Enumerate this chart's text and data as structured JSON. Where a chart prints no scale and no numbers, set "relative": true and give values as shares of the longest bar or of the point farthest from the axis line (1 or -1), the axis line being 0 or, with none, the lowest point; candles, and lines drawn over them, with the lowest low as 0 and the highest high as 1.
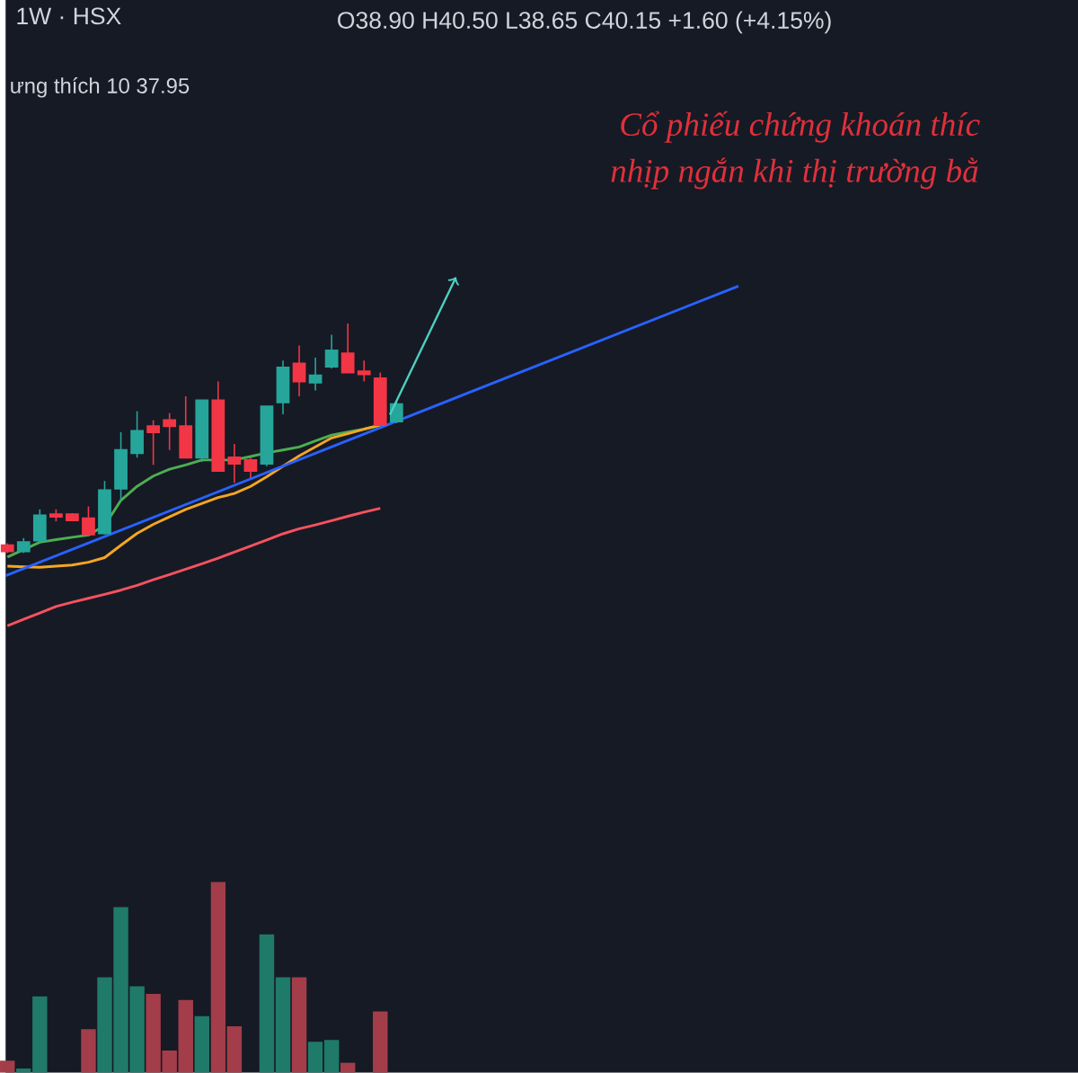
{
  "chart_data": [
    {
      "type": "candlestick",
      "title": "1W · HSX",
      "relative": true,
      "tick_labels": false,
      "annotations": [
        "O38.90 H40.50 L38.65 C40.15 +1.60 (+4.15%)",
        "ưng thích 10 37.95",
        "Cổ phiếu chứng khoán thíc",
        "nhịp ngắn khi thị trường bằ"
      ],
      "categories": [
        null,
        null,
        null,
        null,
        null,
        null,
        null,
        null,
        null,
        null,
        null,
        null,
        null,
        null,
        null,
        null,
        null,
        null,
        null,
        null,
        null,
        null,
        null,
        null,
        null
      ],
      "ohlc": [
        [
          0.034,
          0.042,
          0,
          0.008
        ],
        [
          0.008,
          0.065,
          0,
          0.047
        ],
        [
          0.055,
          0.19,
          0.047,
          0.164
        ],
        [
          0.169,
          0.19,
          0.138,
          0.158
        ],
        [
          0.169,
          0.174,
          0.14,
          0.143
        ],
        [
          0.151,
          0.203,
          0.081,
          0.081
        ],
        [
          0.086,
          0.314,
          0.081,
          0.273
        ],
        [
          0.281,
          0.527,
          0.229,
          0.449
        ],
        [
          0.436,
          0.618,
          0.416,
          0.532
        ],
        [
          0.553,
          0.579,
          0.384,
          0.527
        ],
        [
          0.579,
          0.61,
          0.449,
          0.553
        ],
        [
          0.553,
          0.683,
          0.416,
          0.416
        ],
        [
          0.416,
          0.665,
          0.397,
          0.665
        ],
        [
          0.665,
          0.748,
          0.358,
          0.358
        ],
        [
          0.416,
          0.475,
          0.306,
          0.39
        ],
        [
          0.405,
          0.416,
          0.327,
          0.358
        ],
        [
          0.39,
          0.639,
          0.379,
          0.639
        ],
        [
          0.657,
          0.839,
          0.605,
          0.808
        ],
        [
          0.826,
          0.904,
          0.683,
          0.748
        ],
        [
          0.743,
          0.852,
          0.709,
          0.774
        ],
        [
          0.813,
          0.951,
          0.805,
          0.883
        ],
        [
          0.87,
          1,
          0.787,
          0.787
        ],
        [
          0.792,
          0.839,
          0.748,
          0.779
        ],
        [
          0.761,
          0.787,
          0.558,
          0.558
        ],
        [
          0.574,
          0.657,
          0.566,
          0.649
        ]
      ],
      "colors": [
        "#f23645",
        "#26a69a",
        "#26a69a",
        "#f23645",
        "#f23645",
        "#f23645",
        "#26a69a",
        "#26a69a",
        "#26a69a",
        "#f23645",
        "#f23645",
        "#f23645",
        "#26a69a",
        "#f23645",
        "#f23645",
        "#f23645",
        "#26a69a",
        "#26a69a",
        "#f23645",
        "#26a69a",
        "#26a69a",
        "#f23645",
        "#f23645",
        "#f23645",
        "#26a69a"
      ]
    },
    {
      "type": "line",
      "relative": true,
      "tick_labels": false,
      "color": "#4caf50",
      "categories": [
        null,
        null,
        null,
        null,
        null,
        null,
        null,
        null,
        null,
        null,
        null,
        null,
        null,
        null,
        null,
        null,
        null,
        null,
        null,
        null,
        null,
        null,
        null,
        null
      ],
      "values": [
        0,
        0.057,
        0.113,
        0.132,
        0.15,
        0.167,
        0.24,
        0.43,
        0.536,
        0.614,
        0.666,
        0.699,
        0.736,
        0.736,
        0.736,
        0.762,
        0.79,
        0.812,
        0.835,
        0.88,
        0.925,
        0.948,
        0.97,
        1
      ]
    },
    {
      "type": "line",
      "relative": true,
      "tick_labels": false,
      "color": "#f5a623",
      "categories": [
        null,
        null,
        null,
        null,
        null,
        null,
        null,
        null,
        null,
        null,
        null,
        null,
        null,
        null,
        null,
        null,
        null,
        null,
        null,
        null,
        null,
        null,
        null,
        null
      ],
      "values": [
        0.008,
        0.003,
        0,
        0.008,
        0.016,
        0.036,
        0.068,
        0.155,
        0.239,
        0.302,
        0.355,
        0.407,
        0.449,
        0.491,
        0.519,
        0.569,
        0.637,
        0.711,
        0.784,
        0.847,
        0.91,
        0.94,
        0.972,
        1
      ]
    },
    {
      "type": "line",
      "relative": true,
      "tick_labels": false,
      "color": "#f7525f",
      "categories": [
        null,
        null,
        null,
        null,
        null,
        null,
        null,
        null,
        null,
        null,
        null,
        null,
        null,
        null,
        null,
        null,
        null,
        null,
        null,
        null,
        null,
        null,
        null,
        null
      ],
      "values": [
        0,
        0.055,
        0.109,
        0.164,
        0.201,
        0.234,
        0.268,
        0.303,
        0.344,
        0.391,
        0.436,
        0.482,
        0.527,
        0.576,
        0.627,
        0.678,
        0.73,
        0.783,
        0.826,
        0.859,
        0.895,
        0.932,
        0.967,
        1
      ]
    },
    {
      "type": "line",
      "relative": true,
      "tick_labels": false,
      "color": "#2962ff",
      "categories": [
        null,
        null
      ],
      "values": [
        0,
        1
      ]
    },
    {
      "type": "bar",
      "relative": true,
      "tick_labels": false,
      "categories": [
        null,
        null,
        null,
        null,
        null,
        null,
        null,
        null,
        null,
        null,
        null,
        null,
        null,
        null,
        null,
        null,
        null,
        null,
        null,
        null,
        null,
        null,
        null,
        null,
        null
      ],
      "values": [
        0.063,
        0.022,
        0.4,
        null,
        null,
        0.228,
        0.5,
        0.869,
        0.453,
        0.413,
        0.116,
        0.381,
        0.297,
        1,
        0.244,
        null,
        0.725,
        0.5,
        0.5,
        0.163,
        0.172,
        0.053,
        null,
        0.322,
        null
      ],
      "colors": [
        "#a33d4a",
        "#1f7a6a",
        "#1f7a6a",
        "#a33d4a",
        "#a33d4a",
        "#a33d4a",
        "#1f7a6a",
        "#1f7a6a",
        "#1f7a6a",
        "#a33d4a",
        "#a33d4a",
        "#a33d4a",
        "#1f7a6a",
        "#a33d4a",
        "#a33d4a",
        "#a33d4a",
        "#1f7a6a",
        "#1f7a6a",
        "#a33d4a",
        "#1f7a6a",
        "#1f7a6a",
        "#a33d4a",
        "#a33d4a",
        "#a33d4a",
        "#1f7a6a"
      ]
    }
  ]
}
